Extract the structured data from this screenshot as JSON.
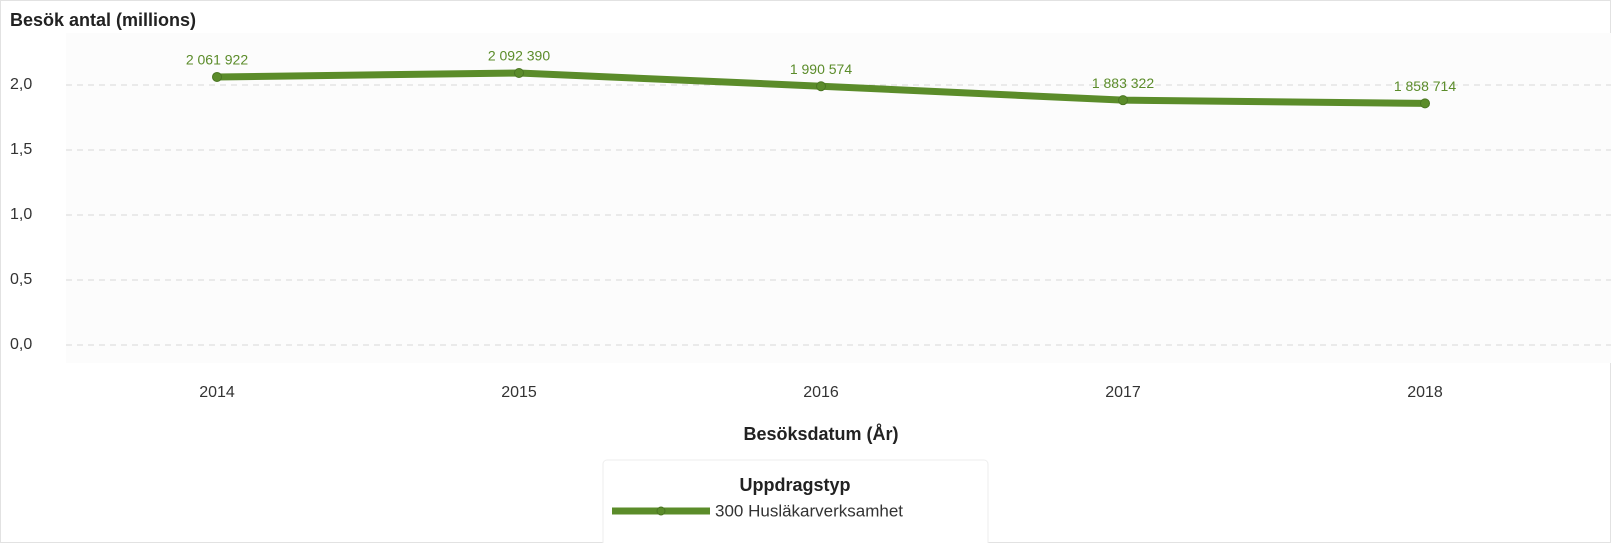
{
  "chart_data": {
    "type": "line",
    "title": "Besök antal (millions)",
    "x_label": "Besöksdatum (År)",
    "categories": [
      "2014",
      "2015",
      "2016",
      "2017",
      "2018"
    ],
    "series": [
      {
        "name": "300 Husläkarverksamhet",
        "color": "#5b8c2a",
        "values": [
          2.061922,
          2.09239,
          1.990574,
          1.883322,
          1.858714
        ],
        "value_labels": [
          "2 061 922",
          "2 092 390",
          "1 990 574",
          "1 883 322",
          "1 858 714"
        ]
      }
    ],
    "legend_title": "Uppdragstyp",
    "legend": "bottom",
    "ylim": [
      -0.1,
      2.4
    ],
    "yticks": [
      {
        "value": 0,
        "label": "0,0"
      },
      {
        "value": 0.5,
        "label": "0,5"
      },
      {
        "value": 1,
        "label": "1,0"
      },
      {
        "value": 1.5,
        "label": "1,5"
      },
      {
        "value": 2,
        "label": "2,0"
      }
    ],
    "grid": true
  }
}
